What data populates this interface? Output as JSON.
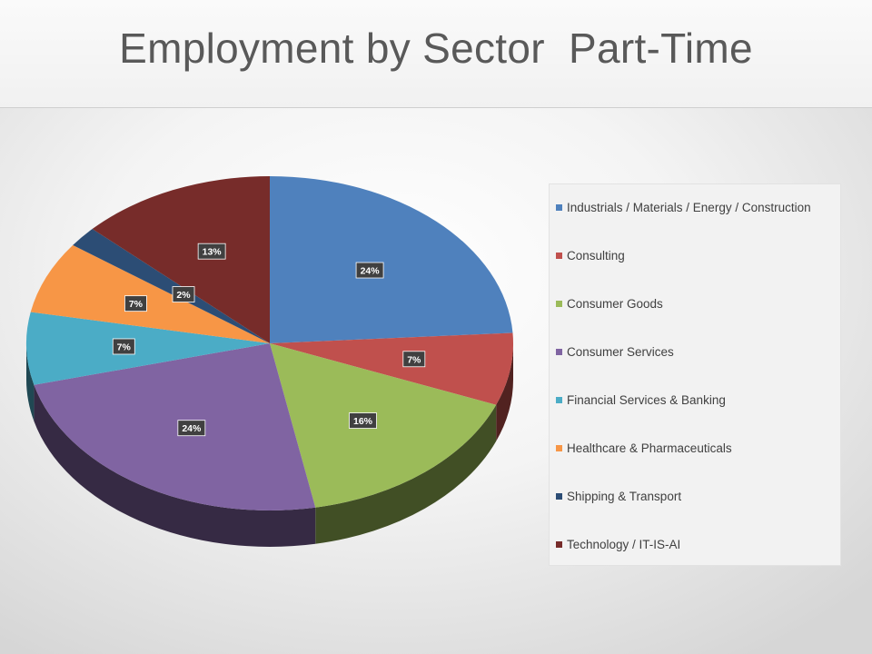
{
  "title": "Employment by Sector  Part-Time",
  "chart_data": {
    "type": "pie",
    "title": "Employment by Sector  Part-Time",
    "style": "3d",
    "start": "12 o'clock, clockwise",
    "legend_position": "right",
    "categories": [
      "Industrials / Materials / Energy / Construction",
      "Consulting",
      "Consumer Goods",
      "Consumer Services",
      "Financial Services & Banking",
      "Healthcare & Pharmaceuticals",
      "Shipping & Transport",
      "Technology / IT-IS-AI"
    ],
    "values": [
      24,
      7,
      16,
      24,
      7,
      7,
      2,
      13
    ],
    "labels": [
      "24%",
      "7%",
      "16%",
      "24%",
      "7%",
      "7%",
      "2%",
      "13%"
    ],
    "colors": [
      "#4F81BD",
      "#C0504D",
      "#9BBB59",
      "#8064A2",
      "#4BACC6",
      "#F79646",
      "#2C4D75",
      "#772C2A"
    ]
  }
}
